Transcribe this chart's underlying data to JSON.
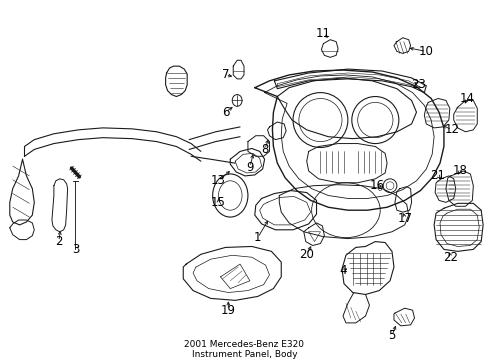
{
  "title": "2001 Mercedes-Benz E320\nInstrument Panel, Body",
  "title_fontsize": 6.5,
  "bg_color": "#ffffff",
  "line_color": "#1a1a1a",
  "fig_width": 4.89,
  "fig_height": 3.6,
  "dpi": 100,
  "label_fontsize": 8.5,
  "label_color": "#000000"
}
